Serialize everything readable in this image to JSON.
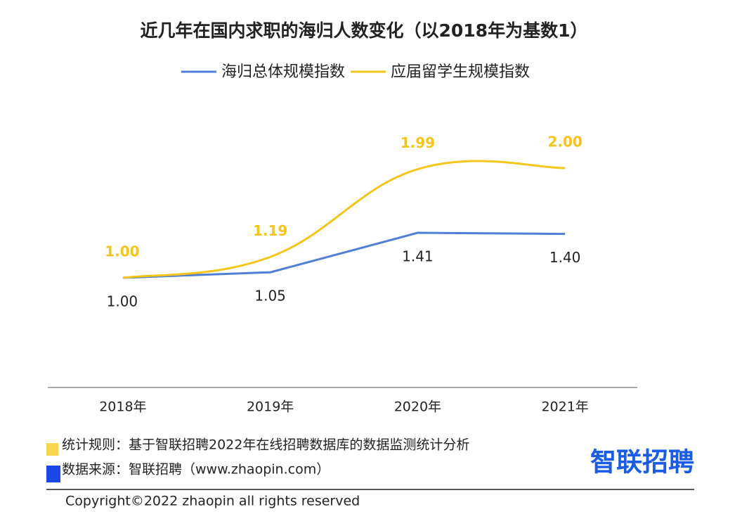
{
  "chart_data": {
    "type": "line",
    "title": "近几年在国内求职的海归人数变化（以2018年为基数1）",
    "categories": [
      "2018年",
      "2019年",
      "2020年",
      "2021年"
    ],
    "series": [
      {
        "name": "海归总体规模指数",
        "color": "#4f7fd6",
        "values": [
          1.0,
          1.05,
          1.41,
          1.4
        ],
        "value_labels": [
          "1.00",
          "1.05",
          "1.41",
          "1.40"
        ],
        "smooth": false
      },
      {
        "name": "应届留学生规模指数",
        "color": "#f5c518",
        "values": [
          1.0,
          1.19,
          1.99,
          2.0
        ],
        "value_labels": [
          "1.00",
          "1.19",
          "1.99",
          "2.00"
        ],
        "smooth": true
      }
    ],
    "ylim": [
      0,
      2.5
    ]
  },
  "footer": {
    "rule": "统计规则：基于智联招聘2022年在线招聘数据库的数据监测统计分析",
    "source": "数据来源：智联招聘（www.zhaopin.com）",
    "logo": "智联招聘",
    "copyright": "Copyright©2022 zhaopin all rights reserved"
  }
}
